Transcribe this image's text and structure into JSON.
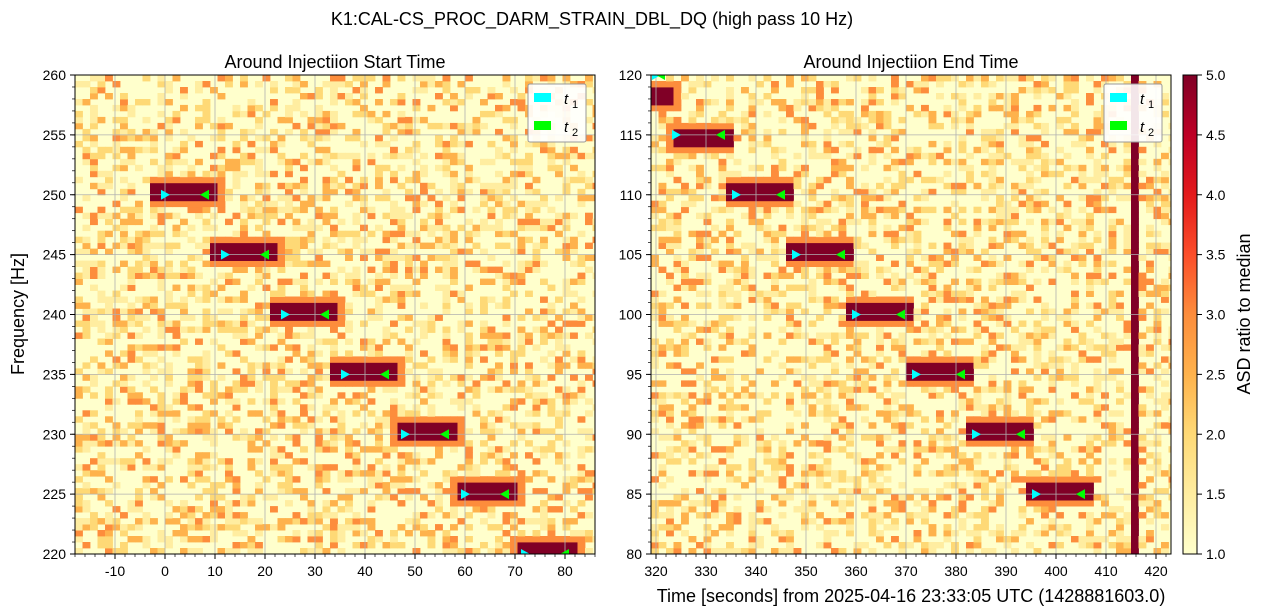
{
  "suptitle": "K1:CAL-CS_PROC_DARM_STRAIN_DBL_DQ (high pass 10 Hz)",
  "chart_data": [
    {
      "type": "heatmap",
      "title": "Around Injectiion Start Time",
      "xlabel": "",
      "ylabel": "Frequency [Hz]",
      "xlim": [
        -18,
        86
      ],
      "ylim": [
        220,
        260
      ],
      "xticks": [
        -10,
        0,
        10,
        20,
        30,
        40,
        50,
        60,
        70,
        80
      ],
      "xticklabels": [
        "-10",
        "0",
        "10",
        "20",
        "30",
        "40",
        "50",
        "60",
        "70",
        "80"
      ],
      "yticks": [
        220,
        225,
        230,
        235,
        240,
        245,
        250,
        255,
        260
      ],
      "yticklabels": [
        "220",
        "225",
        "230",
        "235",
        "240",
        "245",
        "250",
        "255",
        "260"
      ],
      "grid": true,
      "legend_position": "top-right",
      "legend": [
        {
          "label": "t",
          "sub": "1",
          "color": "#00ffff"
        },
        {
          "label": "t",
          "sub": "2",
          "color": "#00ff00"
        }
      ],
      "steps": [
        {
          "x0": -3,
          "x1": 10,
          "f": 250
        },
        {
          "x0": 9,
          "x1": 22,
          "f": 245
        },
        {
          "x0": 21,
          "x1": 34,
          "f": 240
        },
        {
          "x0": 33,
          "x1": 46,
          "f": 235
        },
        {
          "x0": 46,
          "x1": 58,
          "f": 230
        },
        {
          "x0": 58,
          "x1": 70,
          "f": 225
        },
        {
          "x0": 70,
          "x1": 82,
          "f": 220
        }
      ],
      "t1_markers": [
        [
          0,
          250
        ],
        [
          12,
          245
        ],
        [
          24,
          240
        ],
        [
          36,
          235
        ],
        [
          48,
          230
        ],
        [
          60,
          225
        ],
        [
          72,
          220
        ]
      ],
      "t2_markers": [
        [
          8,
          250
        ],
        [
          20,
          245
        ],
        [
          32,
          240
        ],
        [
          44,
          235
        ],
        [
          56,
          230
        ],
        [
          68,
          225
        ],
        [
          80,
          220
        ]
      ]
    },
    {
      "type": "heatmap",
      "title": "Around Injectiion End Time",
      "xlabel": "Time [seconds] from 2025-04-16 23:33:05 UTC (1428881603.0)",
      "ylabel": "",
      "xlim": [
        319,
        423
      ],
      "ylim": [
        80,
        120
      ],
      "xticks": [
        320,
        330,
        340,
        350,
        360,
        370,
        380,
        390,
        400,
        410,
        420
      ],
      "xticklabels": [
        "320",
        "330",
        "340",
        "350",
        "360",
        "370",
        "380",
        "390",
        "400",
        "410",
        "420"
      ],
      "yticks": [
        80,
        85,
        90,
        95,
        100,
        105,
        110,
        115,
        120
      ],
      "yticklabels": [
        "80",
        "85",
        "90",
        "95",
        "100",
        "105",
        "110",
        "115",
        "120"
      ],
      "grid": true,
      "legend_position": "top-right",
      "legend": [
        {
          "label": "t",
          "sub": "1",
          "color": "#00ffff"
        },
        {
          "label": "t",
          "sub": "2",
          "color": "#00ff00"
        }
      ],
      "steps": [
        {
          "x0": 319,
          "x1": 323,
          "f": 118
        },
        {
          "x0": 323,
          "x1": 334,
          "f": 114.5
        },
        {
          "x0": 334,
          "x1": 346,
          "f": 110
        },
        {
          "x0": 346,
          "x1": 358,
          "f": 105
        },
        {
          "x0": 358,
          "x1": 370,
          "f": 100
        },
        {
          "x0": 370,
          "x1": 382,
          "f": 95
        },
        {
          "x0": 382,
          "x1": 394,
          "f": 90
        },
        {
          "x0": 394,
          "x1": 406,
          "f": 85
        }
      ],
      "vertical_line_x": 415,
      "t1_markers": [
        [
          320,
          120
        ],
        [
          324,
          115
        ],
        [
          336,
          110
        ],
        [
          348,
          105
        ],
        [
          360,
          100
        ],
        [
          372,
          95
        ],
        [
          384,
          90
        ],
        [
          396,
          85
        ]
      ],
      "t2_markers": [
        [
          321,
          120
        ],
        [
          333,
          115
        ],
        [
          345,
          110
        ],
        [
          357,
          105
        ],
        [
          369,
          100
        ],
        [
          381,
          95
        ],
        [
          393,
          90
        ],
        [
          405,
          85
        ]
      ]
    }
  ],
  "colorbar": {
    "label": "ASD ratio to median",
    "range": [
      1.0,
      5.0
    ],
    "ticks": [
      "1.0",
      "1.5",
      "2.0",
      "2.5",
      "3.0",
      "3.5",
      "4.0",
      "4.5",
      "5.0"
    ],
    "colors": [
      "#ffffcc",
      "#ffeda0",
      "#fed976",
      "#feb24c",
      "#fd8d3c",
      "#fc4e2a",
      "#e31a1c",
      "#bd0026",
      "#800026"
    ]
  }
}
